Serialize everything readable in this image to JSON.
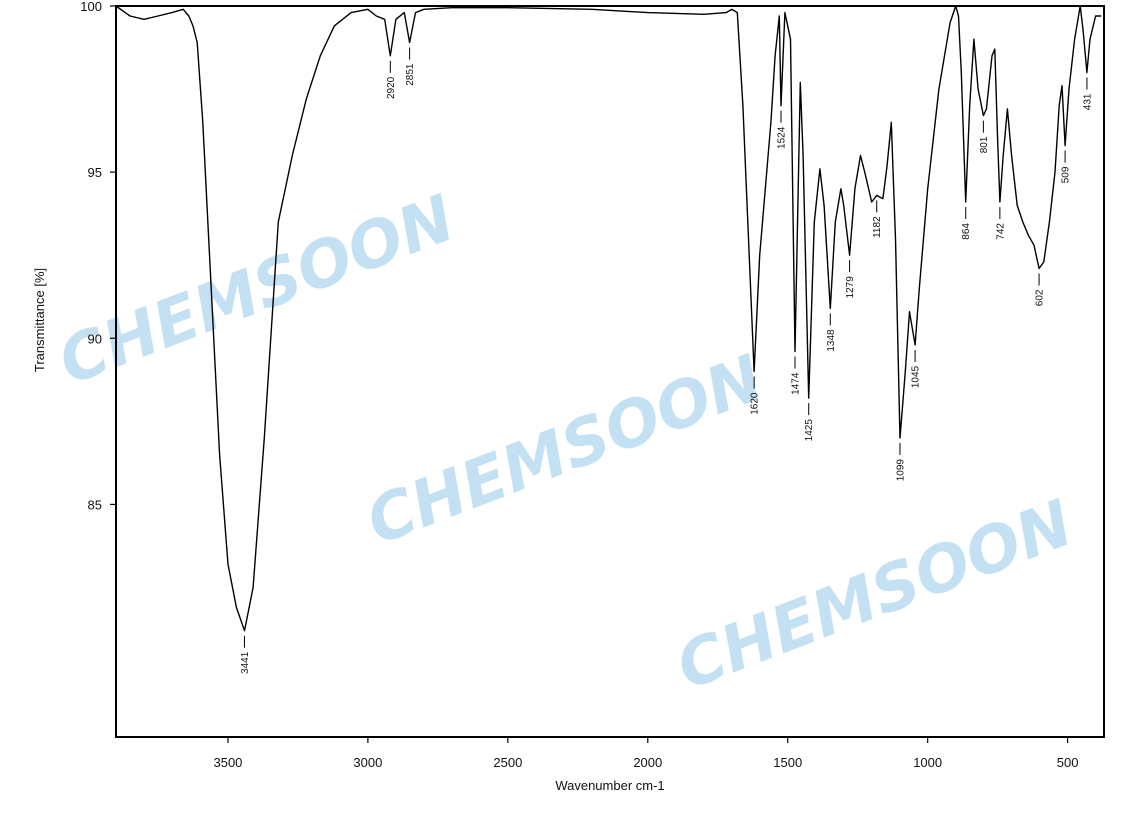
{
  "chart_data": {
    "type": "line",
    "xlabel": "Wavenumber cm-1",
    "ylabel": "Transmittance [%]",
    "xlim": [
      3900,
      370
    ],
    "ylim": [
      78,
      100
    ],
    "x_ticks": [
      "3500",
      "3000",
      "2500",
      "2000",
      "1500",
      "1000",
      "500"
    ],
    "y_ticks": [
      "100",
      "95",
      "90",
      "85"
    ],
    "grid": false,
    "x": [
      3900,
      3850,
      3800,
      3750,
      3700,
      3660,
      3640,
      3625,
      3610,
      3590,
      3560,
      3530,
      3500,
      3470,
      3441,
      3410,
      3370,
      3320,
      3270,
      3220,
      3170,
      3120,
      3060,
      3000,
      2970,
      2940,
      2920,
      2900,
      2870,
      2851,
      2830,
      2800,
      2700,
      2500,
      2200,
      2000,
      1800,
      1720,
      1700,
      1680,
      1660,
      1640,
      1620,
      1600,
      1580,
      1560,
      1545,
      1530,
      1524,
      1510,
      1490,
      1474,
      1455,
      1445,
      1425,
      1405,
      1385,
      1370,
      1348,
      1330,
      1310,
      1300,
      1279,
      1260,
      1240,
      1225,
      1200,
      1182,
      1160,
      1145,
      1130,
      1115,
      1099,
      1080,
      1065,
      1045,
      1030,
      1000,
      960,
      920,
      900,
      890,
      880,
      864,
      850,
      835,
      820,
      801,
      790,
      770,
      760,
      750,
      742,
      730,
      715,
      700,
      680,
      660,
      640,
      620,
      602,
      585,
      565,
      545,
      530,
      520,
      509,
      495,
      475,
      455,
      445,
      431,
      420,
      400,
      380
    ],
    "y": [
      100,
      99.7,
      99.6,
      99.7,
      99.8,
      99.9,
      99.7,
      99.4,
      98.9,
      96.5,
      91.5,
      86.5,
      83.2,
      81.9,
      81.2,
      82.5,
      87.0,
      93.5,
      95.5,
      97.2,
      98.5,
      99.4,
      99.8,
      99.9,
      99.7,
      99.6,
      98.5,
      99.6,
      99.8,
      98.9,
      99.8,
      99.9,
      99.95,
      99.95,
      99.9,
      99.8,
      99.75,
      99.8,
      99.9,
      99.8,
      97.0,
      93.0,
      89.0,
      92.5,
      94.5,
      96.5,
      98.5,
      99.7,
      97.0,
      99.8,
      99.0,
      89.6,
      97.7,
      95.5,
      88.2,
      93.5,
      95.1,
      94.0,
      90.9,
      93.5,
      94.5,
      94.0,
      92.5,
      94.5,
      95.5,
      95.0,
      94.1,
      94.3,
      94.2,
      95.2,
      96.5,
      93.0,
      87.0,
      89.0,
      90.8,
      89.8,
      91.5,
      94.5,
      97.5,
      99.5,
      100.0,
      99.7,
      98.0,
      94.1,
      97.0,
      99.0,
      97.5,
      96.7,
      96.9,
      98.5,
      98.7,
      96.0,
      94.1,
      95.5,
      96.9,
      95.5,
      94.0,
      93.5,
      93.1,
      92.8,
      92.1,
      92.3,
      93.5,
      95.0,
      97.0,
      97.6,
      95.8,
      97.5,
      99.0,
      100.0,
      99.3,
      98.0,
      99.0,
      99.7,
      99.7
    ],
    "peaks": [
      3441,
      2920,
      2851,
      1620,
      1524,
      1474,
      1425,
      1348,
      1279,
      1182,
      1099,
      1045,
      864,
      801,
      742,
      602,
      509,
      431
    ],
    "peak_labels": [
      "3441",
      "2920",
      "2851",
      "1620",
      "1524",
      "1474",
      "1425",
      "1348",
      "1279",
      "1182",
      "1099",
      "1045",
      "864",
      "801",
      "742",
      "602",
      "509",
      "431"
    ],
    "watermark": "CHEMSOON",
    "colors": {
      "line": "#000000",
      "watermark": "#b9dcf2"
    }
  }
}
